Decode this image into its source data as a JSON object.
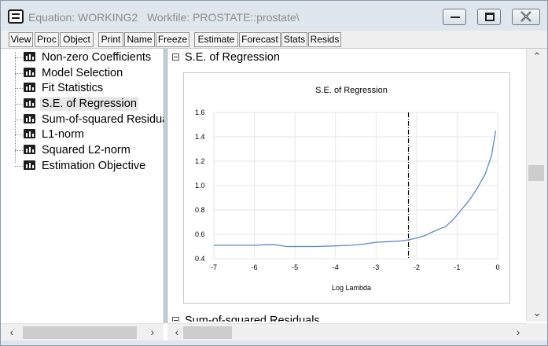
{
  "window": {
    "title": "Equation: WORKING2   Workfile: PROSTATE::prostate\\"
  },
  "toolbar": {
    "buttons": [
      "View",
      "Proc",
      "Object",
      "Print",
      "Name",
      "Freeze",
      "Estimate",
      "Forecast",
      "Stats",
      "Resids"
    ]
  },
  "tree": {
    "items": [
      {
        "label": "Non-zero Coefficients",
        "icon": "graph-icon"
      },
      {
        "label": "Model Selection",
        "icon": "graph-icon"
      },
      {
        "label": "Fit Statistics",
        "icon": "graph-icon"
      },
      {
        "label": "S.E. of Regression",
        "icon": "graph-icon",
        "selected": true
      },
      {
        "label": "Sum-of-squared Residua",
        "icon": "graph-icon"
      },
      {
        "label": "L1-norm",
        "icon": "graph-icon"
      },
      {
        "label": "Squared L2-norm",
        "icon": "graph-icon"
      },
      {
        "label": "Estimation Objective",
        "icon": "graph-icon"
      }
    ]
  },
  "content": {
    "section1_title": "S.E. of Regression",
    "section2_title": "Sum-of-squared Residuals"
  },
  "chart_data": {
    "type": "line",
    "title": "S.E. of Regression",
    "xlabel": "Log Lambda",
    "ylabel": "",
    "xlim": [
      -7,
      0
    ],
    "ylim": [
      0.4,
      1.6
    ],
    "xticks": [
      -7,
      -6,
      -5,
      -4,
      -3,
      -2,
      -1,
      0
    ],
    "yticks": [
      "0.4",
      "0.6",
      "0.8",
      "1.0",
      "1.2",
      "1.4",
      "1.6"
    ],
    "grid": true,
    "vertical_marker_x": -2.2,
    "series": [
      {
        "color": "#5b8ac9",
        "x": [
          -7,
          -6.5,
          -6,
          -5.7,
          -5.5,
          -5.2,
          -5,
          -4.5,
          -4,
          -3.6,
          -3.3,
          -3,
          -2.7,
          -2.4,
          -2.2,
          -2,
          -1.8,
          -1.6,
          -1.4,
          -1.3,
          -1.1,
          -0.9,
          -0.7,
          -0.5,
          -0.3,
          -0.15,
          -0.05
        ],
        "y": [
          0.51,
          0.51,
          0.51,
          0.515,
          0.515,
          0.5,
          0.5,
          0.5,
          0.505,
          0.51,
          0.52,
          0.535,
          0.54,
          0.545,
          0.555,
          0.57,
          0.59,
          0.62,
          0.65,
          0.66,
          0.72,
          0.8,
          0.88,
          0.98,
          1.1,
          1.25,
          1.45
        ]
      }
    ]
  },
  "colors": {
    "titlebar": "#dfe6ee",
    "series_line": "#5b8ac9",
    "marker_line": "#000000"
  }
}
